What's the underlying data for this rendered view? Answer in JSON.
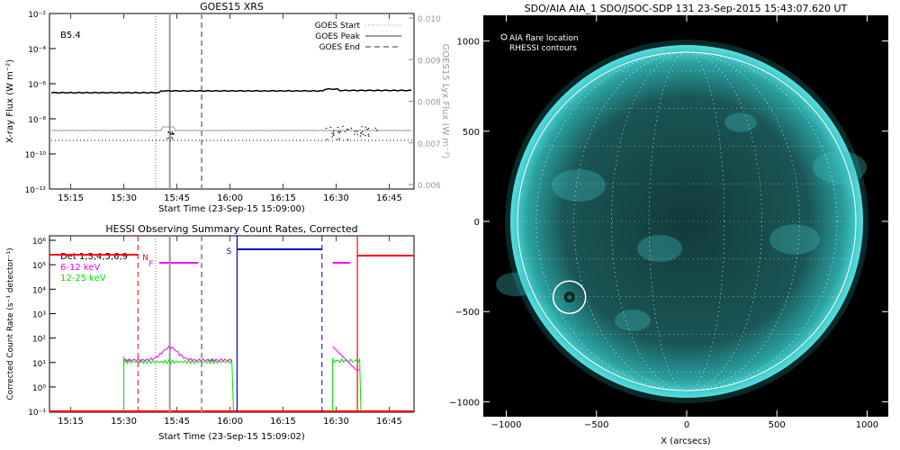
{
  "chart_data": [
    {
      "type": "line",
      "title": "GOES15 XRS",
      "xlabel": "Start Time (23-Sep-15 15:09:00)",
      "ylabel": "X-ray Flux (W m⁻²)",
      "ylabel_right": "GOES15 Lyx Flux (W m⁻²)",
      "class_label": "B5.4",
      "x_ticks": [
        "15:15",
        "15:30",
        "15:45",
        "16:00",
        "16:15",
        "16:30",
        "16:45"
      ],
      "y_ticks": [
        "10⁻²",
        "10⁻⁴",
        "10⁻⁶",
        "10⁻⁸",
        "10⁻¹⁰",
        "10⁻¹²"
      ],
      "y_right_ticks": [
        "0.010",
        "0.009",
        "0.008",
        "0.007",
        "0.006"
      ],
      "legend": [
        "GOES Start",
        "GOES Peak",
        "GOES End"
      ],
      "markers": {
        "start": "15:39",
        "peak": "15:43",
        "end": "15:52"
      },
      "grid": false
    },
    {
      "type": "line",
      "title": "HESSI Observing Summary Count Rates, Corrected",
      "xlabel": "Start Time (23-Sep-15 15:09:02)",
      "ylabel": "Corrected Count Rate (s⁻¹ detector⁻¹)",
      "x_ticks": [
        "15:15",
        "15:30",
        "15:45",
        "16:00",
        "16:15",
        "16:30",
        "16:45"
      ],
      "y_ticks": [
        "10⁶",
        "10⁵",
        "10⁴",
        "10³",
        "10²",
        "10¹",
        "10⁰",
        "10⁻¹"
      ],
      "legend": [
        {
          "name": "Det 1,3,4,5,6,9",
          "color": "#000000"
        },
        {
          "name": "6-12 keV",
          "color": "#ff00ff"
        },
        {
          "name": "12-25 keV",
          "color": "#00e000"
        }
      ],
      "annotations": [
        "N",
        "F",
        "S"
      ],
      "series": [
        {
          "name": "6-12 keV",
          "approx_level": "10¹ (peak ~4×10¹ near 15:43, ~5×10¹ near 16:30)"
        },
        {
          "name": "12-25 keV",
          "approx_level": "~10¹"
        }
      ]
    },
    {
      "type": "image",
      "title": "SDO/AIA AIA_1 SDO/JSOC-SDP 131 23-Sep-2015 15:43:07.620 UT",
      "xlabel": "X (arcsecs)",
      "x_ticks": [
        "−1000",
        "−500",
        "0",
        "500",
        "1000"
      ],
      "y_ticks": [
        "1000",
        "500",
        "0",
        "−500",
        "−1000"
      ],
      "legend": [
        "AIA flare location",
        "RHESSI contours"
      ],
      "flare_location": {
        "x": -650,
        "y": -420
      },
      "colors": {
        "sun": "#2aa8a8",
        "background": "#000000",
        "limb": "#ffffff"
      }
    }
  ]
}
